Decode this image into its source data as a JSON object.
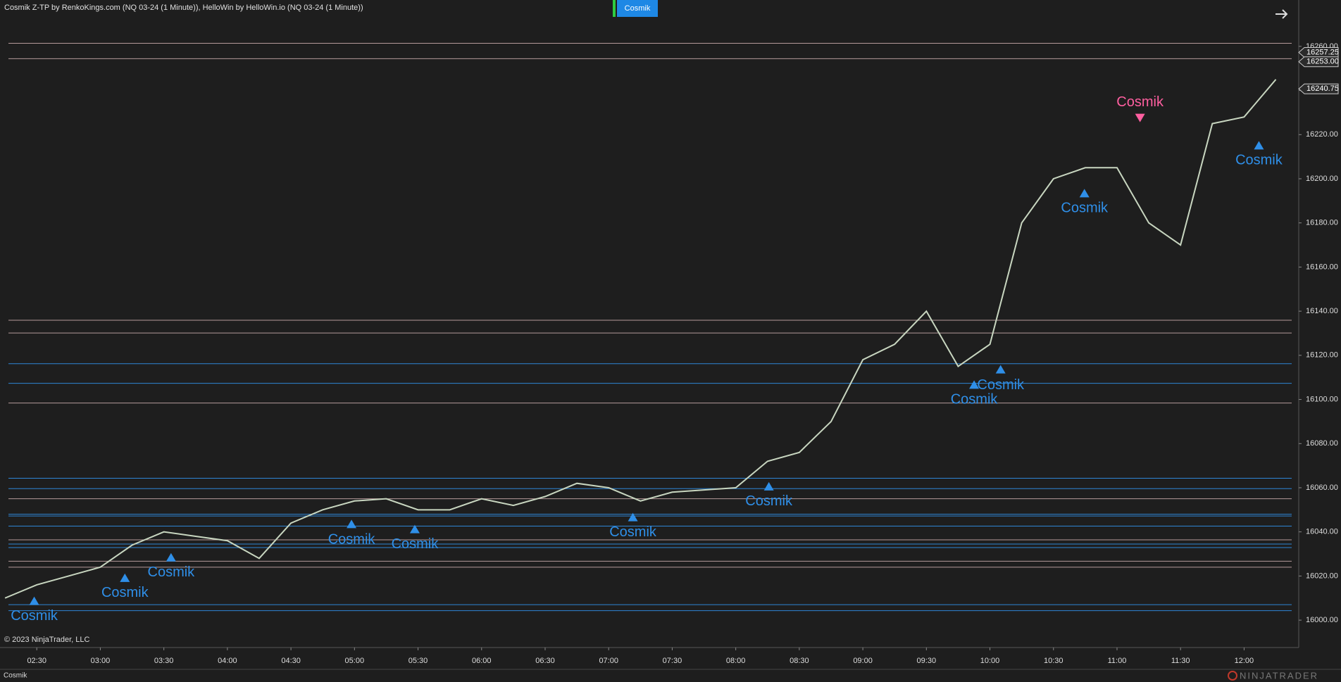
{
  "header": {
    "title": "Cosmik Z-TP by RenkoKings.com (NQ 03-24 (1 Minute)), HelloWin by HelloWin.io (NQ 03-24 (1 Minute))",
    "button": "Cosmik"
  },
  "chart_data": {
    "type": "line",
    "color": "#c8d6c0",
    "categories": [
      null,
      "02:30",
      null,
      "03:00",
      null,
      "03:30",
      null,
      "04:00",
      null,
      "04:30",
      null,
      "05:00",
      null,
      "05:30",
      null,
      "06:00",
      null,
      "06:30",
      null,
      "07:00",
      null,
      "07:30",
      null,
      "08:00",
      null,
      "08:30",
      null,
      "09:00",
      null,
      "09:30",
      null,
      "10:00",
      null,
      "10:30",
      null,
      "11:00",
      null,
      "11:30",
      null,
      "12:00",
      null
    ],
    "values": [
      16010,
      16016,
      16020,
      16024,
      16034,
      16040,
      16038,
      16036,
      16028,
      16044,
      16050,
      16054,
      16055,
      16050,
      16050,
      16055,
      16052,
      16056,
      16062,
      16060,
      16054,
      16058,
      16059,
      16060,
      16072,
      16076,
      16090,
      16118,
      16125,
      16140,
      16115,
      16125,
      16180,
      16200,
      16205,
      16205,
      16180,
      16170,
      16225,
      16228,
      16245
    ],
    "ylim": [
      15987.6,
      16281
    ],
    "yticks": [
      {
        "value": 16000,
        "label": "16000.00"
      },
      {
        "value": 16020,
        "label": "16020.00"
      },
      {
        "value": 16040,
        "label": "16040.00"
      },
      {
        "value": 16060,
        "label": "16060.00"
      },
      {
        "value": 16080,
        "label": "16080.00"
      },
      {
        "value": 16100,
        "label": "16100.00"
      },
      {
        "value": 16120,
        "label": "16120.00"
      },
      {
        "value": 16140,
        "label": "16140.00"
      },
      {
        "value": 16160,
        "label": "16160.00"
      },
      {
        "value": 16180,
        "label": "16180.00"
      },
      {
        "value": 16200,
        "label": "16200.00"
      },
      {
        "value": 16220,
        "label": "16220.00"
      },
      {
        "value": 16240,
        "label": "16240.00"
      },
      {
        "value": 16260,
        "label": "16260.00"
      }
    ],
    "price_markers": [
      {
        "value": 16257.25,
        "label": "16257.25"
      },
      {
        "value": 16253,
        "label": "16253.00"
      },
      {
        "value": 16240.75,
        "label": "16240.75"
      }
    ],
    "levels": [
      {
        "value": 16261.4,
        "color": "#b59a9a"
      },
      {
        "value": 16254.4,
        "color": "#b59a9a"
      },
      {
        "value": 16135.9,
        "color": "#b59a9a"
      },
      {
        "value": 16130.1,
        "color": "#b59a9a"
      },
      {
        "value": 16098.4,
        "color": "#b59a9a"
      },
      {
        "value": 16055,
        "color": "#b59a9a"
      },
      {
        "value": 16036.4,
        "color": "#b59a9a"
      },
      {
        "value": 16026.7,
        "color": "#b59a9a"
      },
      {
        "value": 16024,
        "color": "#b59a9a"
      },
      {
        "value": 16116.2,
        "color": "#2f86d6"
      },
      {
        "value": 16107.3,
        "color": "#2f86d6"
      },
      {
        "value": 16064.3,
        "color": "#2f86d6"
      },
      {
        "value": 16059.6,
        "color": "#2f86d6"
      },
      {
        "value": 16048,
        "color": "#2f86d6"
      },
      {
        "value": 16047.2,
        "color": "#2f86d6"
      },
      {
        "value": 16042.6,
        "color": "#2f86d6"
      },
      {
        "value": 16034.5,
        "color": "#2f86d6"
      },
      {
        "value": 16032.9,
        "color": "#2f86d6"
      },
      {
        "value": 16007,
        "color": "#2f86d6"
      },
      {
        "value": 16004.3,
        "color": "#2f86d6"
      }
    ],
    "signals": [
      {
        "label": "Cosmik",
        "color": "#2f8fe8"
      },
      {
        "label": "Cosmik",
        "color": "#2f8fe8"
      },
      {
        "label": "Cosmik",
        "color": "#2f8fe8"
      },
      {
        "label": "Cosmik",
        "color": "#2f8fe8"
      },
      {
        "label": "Cosmik",
        "color": "#2f8fe8"
      },
      {
        "label": "Cosmik",
        "color": "#2f8fe8"
      },
      {
        "label": "Cosmik",
        "color": "#2f8fe8"
      },
      {
        "label": "Cosmik",
        "color": "#2f8fe8"
      },
      {
        "label": "Cosmik",
        "color": "#2f8fe8"
      },
      {
        "label": "Cosmik",
        "color": "#2f8fe8"
      },
      {
        "label": "Cosmik",
        "color": "#2f8fe8"
      },
      {
        "label": "Cosmik",
        "color": "#ff5fa0"
      }
    ]
  },
  "footer": {
    "copyright": "© 2023 NinjaTrader, LLC",
    "tab": "Cosmik",
    "brand": "NINJATRADER"
  }
}
